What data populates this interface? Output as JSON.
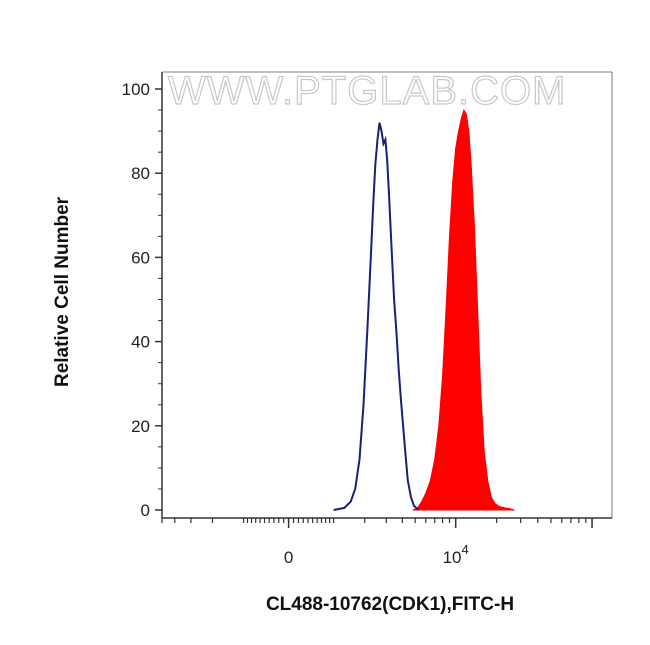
{
  "chart_data": {
    "type": "area",
    "title": "",
    "xlabel": "CL488-10762(CDK1),FITC-H",
    "ylabel": "Relative Cell Number",
    "watermark": "WWW.PTGLAB.COM",
    "x_scale": "biexponential",
    "ylim": [
      0,
      100
    ],
    "y_ticks": [
      0,
      20,
      40,
      60,
      80,
      100
    ],
    "x_tick_labels": [
      {
        "value": 0,
        "label": "0"
      },
      {
        "value": 10000,
        "label": "10",
        "exponent": "4"
      }
    ],
    "grid": false,
    "legend": "none",
    "series": [
      {
        "style": "outline",
        "color": "#1a1f7a",
        "points": [
          [
            1000,
            0
          ],
          [
            1300,
            0.5
          ],
          [
            1500,
            2
          ],
          [
            1650,
            5
          ],
          [
            1800,
            12
          ],
          [
            1950,
            25
          ],
          [
            2100,
            42
          ],
          [
            2250,
            60
          ],
          [
            2350,
            72
          ],
          [
            2450,
            82
          ],
          [
            2550,
            88
          ],
          [
            2650,
            92
          ],
          [
            2750,
            90
          ],
          [
            2850,
            87
          ],
          [
            2950,
            88
          ],
          [
            3050,
            83
          ],
          [
            3150,
            75
          ],
          [
            3300,
            62
          ],
          [
            3450,
            50
          ],
          [
            3600,
            42
          ],
          [
            3750,
            33
          ],
          [
            3900,
            26
          ],
          [
            4050,
            20
          ],
          [
            4200,
            14
          ],
          [
            4400,
            7
          ],
          [
            4650,
            3
          ],
          [
            4900,
            1
          ],
          [
            5300,
            0
          ]
        ]
      },
      {
        "style": "filled",
        "color": "#ff0000",
        "points": [
          [
            4800,
            0
          ],
          [
            5200,
            0.5
          ],
          [
            5600,
            2
          ],
          [
            6000,
            4
          ],
          [
            6500,
            7
          ],
          [
            7000,
            12
          ],
          [
            7500,
            20
          ],
          [
            8000,
            32
          ],
          [
            8500,
            48
          ],
          [
            9000,
            65
          ],
          [
            9500,
            78
          ],
          [
            10000,
            86
          ],
          [
            10500,
            90
          ],
          [
            11000,
            93
          ],
          [
            11500,
            95
          ],
          [
            12000,
            94
          ],
          [
            12500,
            90
          ],
          [
            13000,
            82
          ],
          [
            13700,
            68
          ],
          [
            14500,
            48
          ],
          [
            15300,
            28
          ],
          [
            16200,
            14
          ],
          [
            17200,
            7
          ],
          [
            18300,
            3
          ],
          [
            19500,
            1.5
          ],
          [
            21000,
            0.8
          ],
          [
            23000,
            0.5
          ],
          [
            25000,
            0.3
          ],
          [
            27000,
            0
          ]
        ]
      }
    ]
  }
}
